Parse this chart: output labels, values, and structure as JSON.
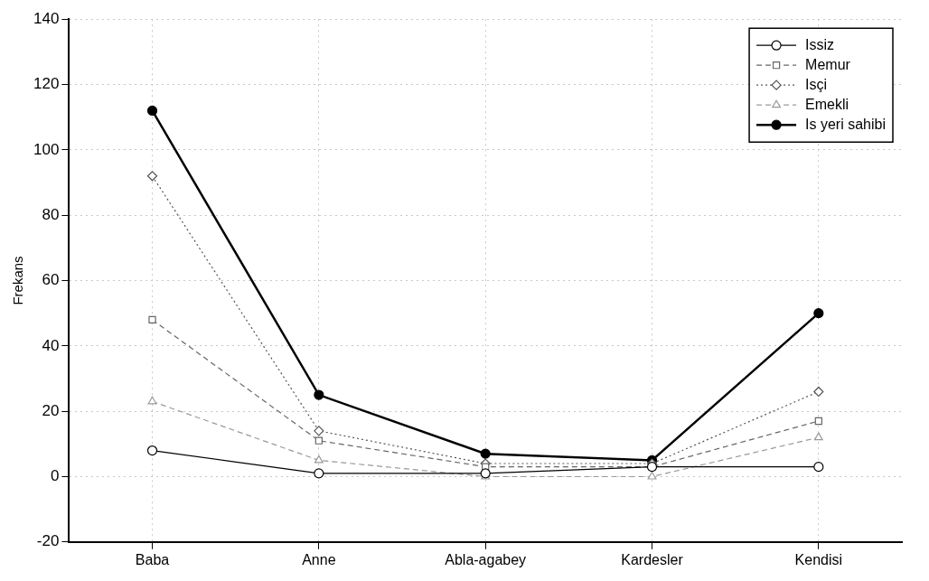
{
  "chart_data": {
    "type": "line",
    "ylabel": "Frekans",
    "categories": [
      "Baba",
      "Anne",
      "Abla-agabey",
      "Kardesler",
      "Kendisi"
    ],
    "series": [
      {
        "name": "Issiz",
        "color": "#000000",
        "marker": "circle",
        "line_style": "solid",
        "values": [
          8,
          1,
          1,
          3,
          3
        ]
      },
      {
        "name": "Memur",
        "color": "#666666",
        "marker": "square",
        "line_style": "dashed",
        "values": [
          48,
          11,
          3,
          3,
          17
        ]
      },
      {
        "name": "Isçi",
        "color": "#555555",
        "marker": "diamond",
        "line_style": "dotted",
        "values": [
          92,
          14,
          4,
          4,
          26
        ]
      },
      {
        "name": "Emekli",
        "color": "#999999",
        "marker": "triangle",
        "line_style": "dashed",
        "values": [
          23,
          5,
          0,
          0,
          12
        ]
      },
      {
        "name": "Is yeri sahibi",
        "color": "#000000",
        "marker": "circle_filled",
        "line_style": "solid",
        "values": [
          112,
          25,
          7,
          5,
          50
        ]
      }
    ],
    "ylim": [
      -20,
      140
    ],
    "yticks": [
      -20,
      0,
      20,
      40,
      60,
      80,
      100,
      120,
      140
    ],
    "grid": true,
    "legend": "top right"
  }
}
